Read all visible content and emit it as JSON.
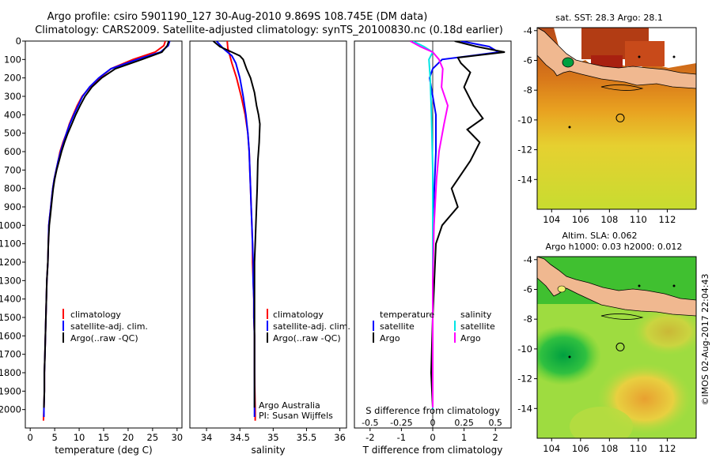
{
  "header": {
    "title_line1": "Argo profile: csiro 5901190_127 30-Aug-2010 9.869S 108.745E (DM data)",
    "title_line2": "Climatology: CARS2009. Satellite-adjusted climatology: synTS_20100830.nc (0.18d earlier)"
  },
  "colors": {
    "climatology": "#ff0000",
    "satellite": "#0000ff",
    "argo": "#000000",
    "sat_diff_salinity": "#00e5e5",
    "argo_diff_salinity": "#ff00ff"
  },
  "chart_data": [
    {
      "type": "line",
      "name": "temperature-profile",
      "xlabel": "temperature (deg C)",
      "ylabel": "",
      "xlim": [
        -1,
        31
      ],
      "ylim": [
        2100,
        0
      ],
      "xticks": [
        0,
        5,
        10,
        15,
        20,
        25,
        30
      ],
      "xtick_labels": [
        "0",
        "5",
        "10",
        "15",
        "20",
        "25",
        "30"
      ],
      "yticks": [
        0,
        100,
        200,
        300,
        400,
        500,
        600,
        700,
        800,
        900,
        1000,
        1100,
        1200,
        1300,
        1400,
        1500,
        1600,
        1700,
        1800,
        1900,
        2000
      ],
      "ytick_labels": [
        "0",
        "100",
        "200",
        "300",
        "400",
        "500",
        "600",
        "700",
        "800",
        "900",
        "1000",
        "1100",
        "1200",
        "1300",
        "1400",
        "1500",
        "1600",
        "1700",
        "1800",
        "1900",
        "2000"
      ],
      "legend": [
        "climatology",
        "satellite-adj. clim.",
        "Argo(..raw -QC)"
      ],
      "series": [
        {
          "name": "climatology",
          "color": "#ff0000",
          "x": [
            27.6,
            27.3,
            25.5,
            21.0,
            16.5,
            14.2,
            12.2,
            10.6,
            9.6,
            8.8,
            8.0,
            7.4,
            6.7,
            6.1,
            5.7,
            5.3,
            4.9,
            4.6,
            4.4,
            4.2,
            4.0,
            3.8,
            3.7,
            3.6,
            3.4,
            3.3,
            3.2,
            3.1,
            3.0,
            2.9,
            2.9,
            2.8,
            2.7
          ],
          "y": [
            0,
            25,
            60,
            100,
            150,
            200,
            250,
            300,
            350,
            400,
            450,
            500,
            550,
            600,
            650,
            700,
            750,
            800,
            850,
            900,
            950,
            1000,
            1100,
            1200,
            1300,
            1400,
            1500,
            1600,
            1700,
            1800,
            1900,
            2000,
            2060
          ]
        },
        {
          "name": "satellite-adj. clim.",
          "color": "#0000ff",
          "x": [
            28.5,
            28.2,
            26.6,
            21.8,
            16.5,
            14.0,
            12.1,
            10.7,
            9.8,
            8.9,
            8.1,
            7.4,
            6.8,
            6.2,
            5.7,
            5.3,
            4.9,
            4.6,
            4.4,
            4.2,
            4.0,
            3.8,
            3.7,
            3.6,
            3.4,
            3.3,
            3.2,
            3.1,
            3.0,
            2.9,
            2.9,
            2.8,
            2.8
          ],
          "y": [
            0,
            25,
            60,
            100,
            150,
            200,
            250,
            300,
            350,
            400,
            450,
            500,
            550,
            600,
            650,
            700,
            750,
            800,
            850,
            900,
            950,
            1000,
            1100,
            1200,
            1300,
            1400,
            1500,
            1600,
            1700,
            1800,
            1900,
            2000,
            2040
          ]
        },
        {
          "name": "Argo(..raw -QC)",
          "color": "#000000",
          "x": [
            28.3,
            28.0,
            26.9,
            22.8,
            17.4,
            14.6,
            12.6,
            11.2,
            10.2,
            9.3,
            8.5,
            7.7,
            7.0,
            6.4,
            5.9,
            5.4,
            5.0,
            4.7,
            4.5,
            4.3,
            4.1,
            3.9,
            3.7,
            3.6,
            3.4,
            3.3,
            3.2,
            3.1,
            3.0,
            2.9,
            2.9,
            2.8
          ],
          "y": [
            0,
            25,
            60,
            100,
            150,
            200,
            250,
            300,
            350,
            400,
            450,
            500,
            550,
            600,
            650,
            700,
            750,
            800,
            850,
            900,
            950,
            1000,
            1100,
            1200,
            1300,
            1400,
            1500,
            1600,
            1700,
            1800,
            1900,
            1990
          ]
        }
      ]
    },
    {
      "type": "line",
      "name": "salinity-profile",
      "xlabel": "salinity",
      "ylabel": "",
      "xlim": [
        33.75,
        36.1
      ],
      "ylim": [
        2100,
        0
      ],
      "xticks": [
        34,
        34.5,
        35,
        35.5,
        36
      ],
      "xtick_labels": [
        "34",
        "34.5",
        "35",
        "35.5",
        "36"
      ],
      "legend": [
        "climatology",
        "satellite-adj. clim.",
        "Argo(..raw -QC)"
      ],
      "annotation": [
        "Argo Australia",
        "PI: Susan Wijffels"
      ],
      "series": [
        {
          "name": "climatology",
          "color": "#ff0000",
          "x": [
            34.31,
            34.32,
            34.35,
            34.38,
            34.45,
            34.52,
            34.58,
            34.62,
            34.64,
            34.65,
            34.66,
            34.67,
            34.68,
            34.69,
            34.69,
            34.7,
            34.71,
            34.71,
            34.72,
            34.72,
            34.73,
            34.73
          ],
          "y": [
            0,
            40,
            80,
            120,
            200,
            300,
            400,
            500,
            600,
            700,
            800,
            900,
            1000,
            1100,
            1200,
            1300,
            1400,
            1500,
            1600,
            1800,
            2000,
            2060
          ]
        },
        {
          "name": "satellite-adj. clim.",
          "color": "#0000ff",
          "x": [
            34.15,
            34.25,
            34.38,
            34.44,
            34.5,
            34.55,
            34.59,
            34.62,
            34.64,
            34.65,
            34.66,
            34.67,
            34.68,
            34.69,
            34.7,
            34.7,
            34.71,
            34.71,
            34.72,
            34.72,
            34.72,
            34.72
          ],
          "y": [
            0,
            40,
            80,
            120,
            200,
            300,
            400,
            500,
            600,
            700,
            800,
            900,
            1000,
            1100,
            1200,
            1300,
            1400,
            1500,
            1600,
            1800,
            2000,
            2040
          ]
        },
        {
          "name": "Argo(..raw -QC)",
          "color": "#000000",
          "x": [
            34.1,
            34.2,
            34.38,
            34.5,
            34.55,
            34.6,
            34.66,
            34.72,
            34.75,
            34.78,
            34.8,
            34.79,
            34.77,
            34.76,
            34.74,
            34.73,
            34.72,
            34.72,
            34.72,
            34.72,
            34.72,
            34.72,
            34.72
          ],
          "y": [
            0,
            30,
            60,
            80,
            100,
            150,
            200,
            280,
            350,
            400,
            450,
            550,
            650,
            800,
            1000,
            1100,
            1200,
            1300,
            1400,
            1500,
            1600,
            1800,
            1990
          ]
        }
      ]
    },
    {
      "type": "line",
      "name": "difference-profile",
      "xlabel": "T difference from climatology",
      "xlabel_top": "S difference from climatology",
      "xlim": [
        -2.5,
        2.5
      ],
      "ylim": [
        2100,
        0
      ],
      "xticks": [
        -2,
        -1,
        0,
        1,
        2
      ],
      "xtick_labels": [
        "-2",
        "-1",
        "0",
        "1",
        "2"
      ],
      "s_ticks": [
        -0.5,
        -0.25,
        0,
        0.25,
        0.5
      ],
      "s_tick_labels": [
        "-0.5",
        "-0.25",
        "0",
        "0.25",
        "0.5"
      ],
      "legend_temperature": {
        "title": "temperature",
        "items": [
          "satellite",
          "Argo"
        ]
      },
      "legend_salinity": {
        "title": "salinity",
        "items": [
          "satellite",
          "Argo"
        ]
      },
      "series": [
        {
          "name": "T satellite",
          "color": "#0000ff",
          "x": [
            0.9,
            1.8,
            2.1,
            1.2,
            0.3,
            0.0,
            -0.1,
            0.0,
            0.1,
            0.1,
            0.05,
            0.0,
            0.0,
            0.0,
            0.0,
            0.0
          ],
          "y": [
            0,
            30,
            60,
            80,
            100,
            150,
            200,
            300,
            400,
            600,
            800,
            1000,
            1300,
            1600,
            1800,
            2000
          ]
        },
        {
          "name": "T Argo",
          "color": "#000000",
          "x": [
            0.7,
            1.4,
            2.3,
            0.8,
            0.9,
            1.2,
            1.0,
            1.3,
            1.6,
            1.1,
            1.5,
            1.2,
            0.6,
            0.8,
            0.3,
            0.1,
            0.05,
            0.0,
            -0.05,
            0.0
          ],
          "y": [
            0,
            30,
            60,
            90,
            120,
            170,
            250,
            350,
            420,
            480,
            550,
            650,
            800,
            900,
            1000,
            1100,
            1300,
            1500,
            1800,
            1990
          ]
        },
        {
          "name": "S satellite",
          "color": "#00e5e5",
          "x": [
            -0.16,
            -0.07,
            0.0,
            -0.03,
            -0.02,
            -0.01,
            0.0,
            0.0,
            0.0,
            0.0,
            0.0
          ],
          "y": [
            0,
            30,
            60,
            100,
            200,
            400,
            700,
            1000,
            1400,
            1800,
            2000
          ]
        },
        {
          "name": "S Argo",
          "color": "#ff00ff",
          "x": [
            -0.18,
            -0.1,
            0.0,
            0.05,
            0.08,
            0.07,
            0.12,
            0.09,
            0.05,
            0.03,
            0.01,
            0.0,
            0.0,
            0.0
          ],
          "y": [
            0,
            30,
            60,
            100,
            150,
            250,
            350,
            450,
            600,
            750,
            1000,
            1300,
            1600,
            1990
          ]
        }
      ]
    },
    {
      "type": "heatmap",
      "name": "sst-map",
      "title": "sat. SST: 28.3 Argo: 28.1",
      "xlim": [
        103,
        114
      ],
      "ylim": [
        -16,
        -3.8
      ],
      "xticks": [
        104,
        106,
        108,
        110,
        112
      ],
      "xtick_labels": [
        "104",
        "106",
        "108",
        "110",
        "112"
      ],
      "yticks": [
        -4,
        -6,
        -8,
        -10,
        -12,
        -14
      ],
      "ytick_labels": [
        "-4",
        "-6",
        "-8",
        "-10",
        "-12",
        "-14"
      ],
      "profile_location": {
        "lon": 108.745,
        "lat": -9.869
      }
    },
    {
      "type": "heatmap",
      "name": "sla-map",
      "title_line1": "Altim. SLA: 0.062",
      "title_line2": "Argo h1000: 0.03 h2000: 0.012",
      "xlim": [
        103,
        114
      ],
      "ylim": [
        -16,
        -3.8
      ],
      "xticks": [
        104,
        106,
        108,
        110,
        112
      ],
      "xtick_labels": [
        "104",
        "106",
        "108",
        "110",
        "112"
      ],
      "yticks": [
        -4,
        -6,
        -8,
        -10,
        -12,
        -14
      ],
      "ytick_labels": [
        "-4",
        "-6",
        "-8",
        "-10",
        "-12",
        "-14"
      ],
      "profile_location": {
        "lon": 108.745,
        "lat": -9.869
      }
    }
  ],
  "footer": {
    "credit": "©IMOS 02-Aug-2017 22:04:43"
  }
}
